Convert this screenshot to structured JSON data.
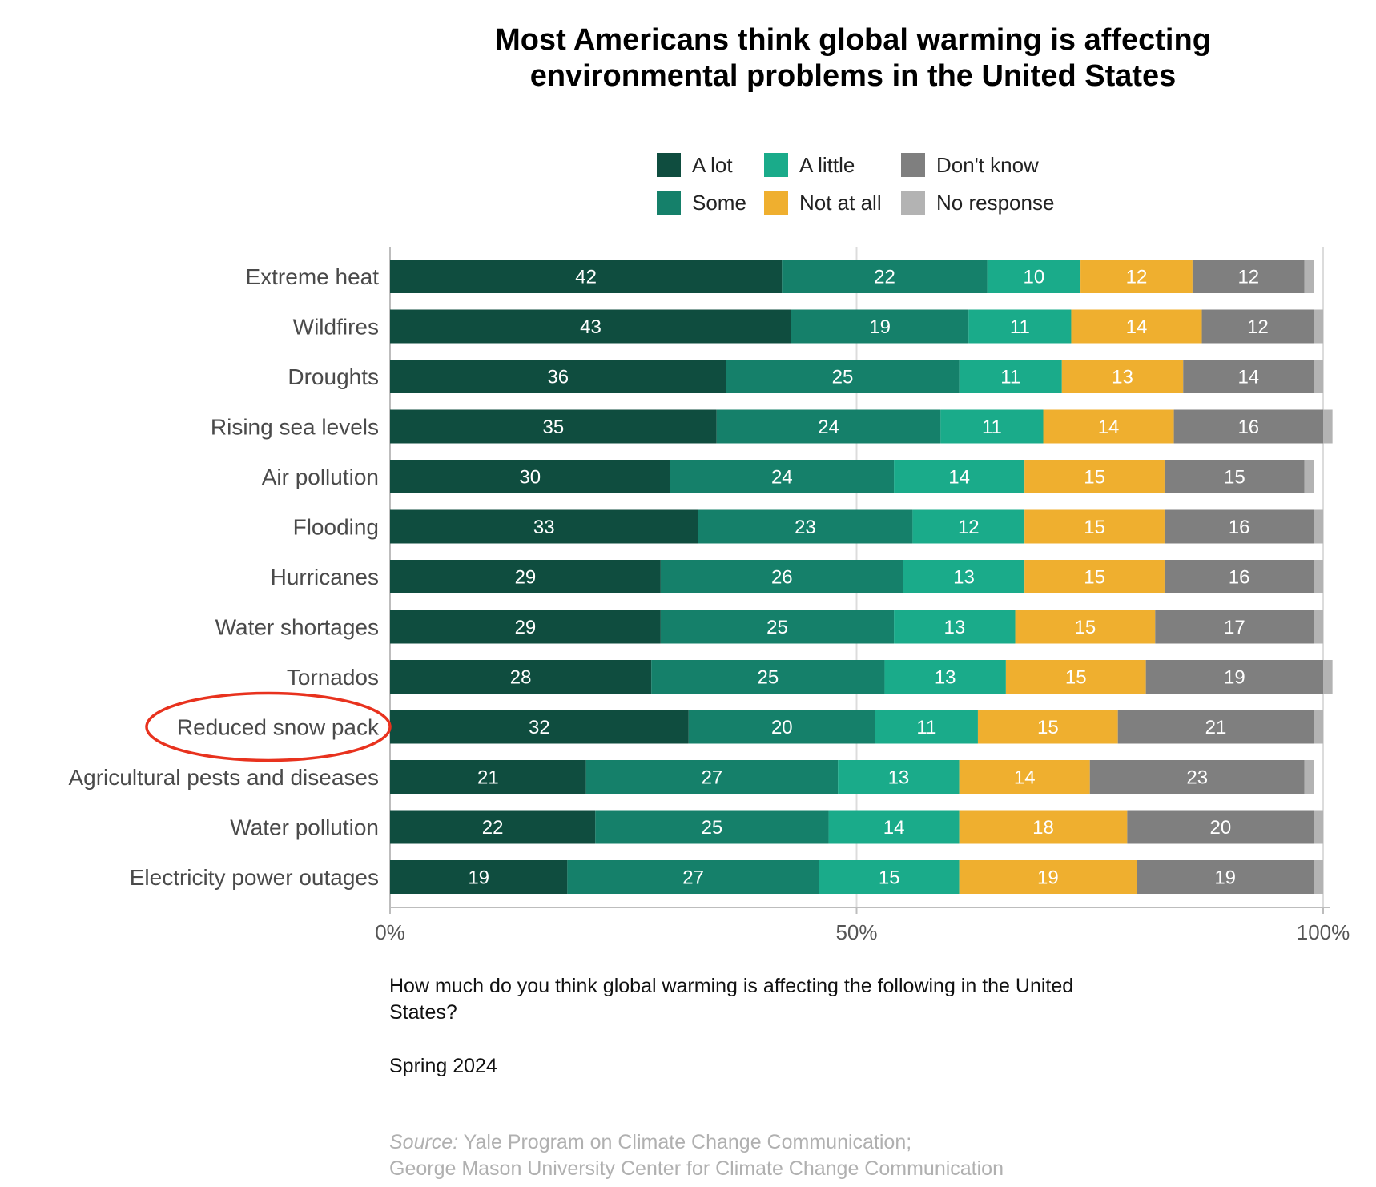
{
  "chart_data": {
    "type": "bar",
    "orientation": "horizontal",
    "stacked": true,
    "title": "Most Americans think global warming is affecting environmental problems in the United States",
    "title_lines": [
      "Most Americans think global warming is affecting",
      "environmental problems in the United States"
    ],
    "categories": [
      "Extreme heat",
      "Wildfires",
      "Droughts",
      "Rising sea levels",
      "Air pollution",
      "Flooding",
      "Hurricanes",
      "Water shortages",
      "Tornados",
      "Reduced snow pack",
      "Agricultural pests and diseases",
      "Water pollution",
      "Electricity power outages"
    ],
    "series": [
      {
        "name": "A lot",
        "color": "#0f4d3f",
        "values": [
          42,
          43,
          36,
          35,
          30,
          33,
          29,
          29,
          28,
          32,
          21,
          22,
          19
        ]
      },
      {
        "name": "Some",
        "color": "#15806a",
        "values": [
          22,
          19,
          25,
          24,
          24,
          23,
          26,
          25,
          25,
          20,
          27,
          25,
          27
        ]
      },
      {
        "name": "A little",
        "color": "#1aab8a",
        "values": [
          10,
          11,
          11,
          11,
          14,
          12,
          13,
          13,
          13,
          11,
          13,
          14,
          15
        ]
      },
      {
        "name": "Not at all",
        "color": "#efaf2f",
        "values": [
          12,
          14,
          13,
          14,
          15,
          15,
          15,
          15,
          15,
          15,
          14,
          18,
          19
        ]
      },
      {
        "name": "Don't know",
        "color": "#7f7f7f",
        "values": [
          12,
          12,
          14,
          16,
          15,
          16,
          16,
          17,
          19,
          21,
          23,
          20,
          19
        ]
      },
      {
        "name": "No response",
        "color": "#b3b3b3",
        "values": [
          1,
          1,
          1,
          1,
          1,
          1,
          1,
          1,
          1,
          1,
          1,
          1,
          1
        ]
      }
    ],
    "value_label_colors": [
      "#ffffff",
      "#ffffff",
      "#ffffff",
      "#ffffff",
      "#ffffff",
      "#ffffff"
    ],
    "x_ticks": [
      "0%",
      "50%",
      "100%"
    ],
    "x_tick_values": [
      0,
      50,
      100
    ],
    "xlim": [
      0,
      100
    ],
    "grid": true,
    "legend_position": "top",
    "highlighted_category": "Reduced snow pack",
    "highlight_color": "#e8321e",
    "question_lines": [
      "How much do you think global warming is affecting the following in the United",
      "States?"
    ],
    "date": "Spring 2024",
    "source_prefix": "Source:",
    "source_lines": [
      " Yale Program on Climate Change Communication;",
      "George Mason University Center for Climate Change Communication"
    ]
  }
}
